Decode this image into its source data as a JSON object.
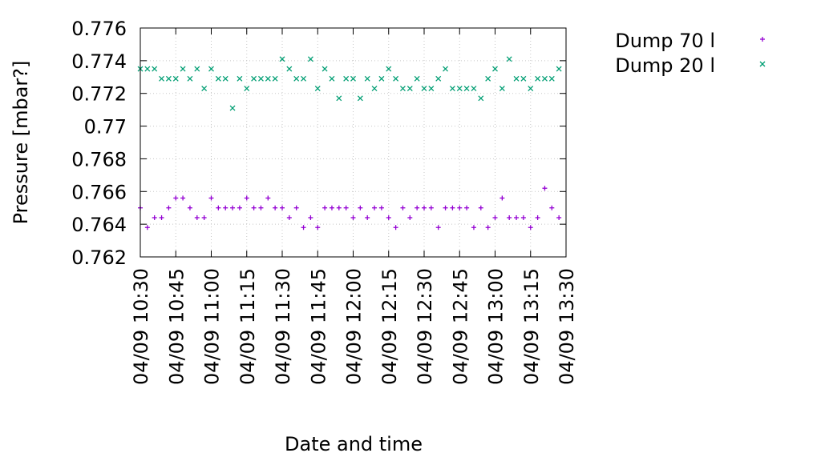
{
  "chart_data": {
    "type": "scatter",
    "xlabel": "Date and time",
    "ylabel": "Pressure [mbar?]",
    "ylim": [
      0.762,
      0.776
    ],
    "xlim": [
      "04/09 10:30",
      "04/09 13:30"
    ],
    "y_ticks": [
      "0.762",
      "0.764",
      "0.766",
      "0.768",
      "0.77",
      "0.772",
      "0.774",
      "0.776"
    ],
    "x_ticks": [
      "04/09 10:30",
      "04/09 10:45",
      "04/09 11:00",
      "04/09 11:15",
      "04/09 11:30",
      "04/09 11:45",
      "04/09 12:00",
      "04/09 12:15",
      "04/09 12:30",
      "04/09 12:45",
      "04/09 13:00",
      "04/09 13:15",
      "04/09 13:30"
    ],
    "grid": true,
    "legend_position": "outside-right-top",
    "x_step_minutes": 3,
    "x_start": "04/09 10:30",
    "series": [
      {
        "name": "Dump 70 l",
        "marker": "plus",
        "color": "#9400d3",
        "values": [
          0.765,
          0.7638,
          0.7644,
          0.7644,
          0.765,
          0.7656,
          0.7656,
          0.765,
          0.7644,
          0.7644,
          0.7656,
          0.765,
          0.765,
          0.765,
          0.765,
          0.7656,
          0.765,
          0.765,
          0.7656,
          0.765,
          0.765,
          0.7644,
          0.765,
          0.7638,
          0.7644,
          0.7638,
          0.765,
          0.765,
          0.765,
          0.765,
          0.7644,
          0.765,
          0.7644,
          0.765,
          0.765,
          0.7644,
          0.7638,
          0.765,
          0.7644,
          0.765,
          0.765,
          0.765,
          0.7638,
          0.765,
          0.765,
          0.765,
          0.765,
          0.7638,
          0.765,
          0.7638,
          0.7644,
          0.7656,
          0.7644,
          0.7644,
          0.7644,
          0.7638,
          0.7644,
          0.7662,
          0.765,
          0.7644
        ]
      },
      {
        "name": "Dump 20 l",
        "marker": "cross",
        "color": "#009e73",
        "values": [
          0.7735,
          0.7735,
          0.7735,
          0.7729,
          0.7729,
          0.7729,
          0.7735,
          0.7729,
          0.7735,
          0.7723,
          0.7735,
          0.7729,
          0.7729,
          0.7711,
          0.7729,
          0.7723,
          0.7729,
          0.7729,
          0.7729,
          0.7729,
          0.7741,
          0.7735,
          0.7729,
          0.7729,
          0.7741,
          0.7723,
          0.7735,
          0.7729,
          0.7717,
          0.7729,
          0.7729,
          0.7717,
          0.7729,
          0.7723,
          0.7729,
          0.7735,
          0.7729,
          0.7723,
          0.7723,
          0.7729,
          0.7723,
          0.7723,
          0.7729,
          0.7735,
          0.7723,
          0.7723,
          0.7723,
          0.7723,
          0.7717,
          0.7729,
          0.7735,
          0.7723,
          0.7741,
          0.7729,
          0.7729,
          0.7723,
          0.7729,
          0.7729,
          0.7729,
          0.7735
        ]
      }
    ]
  }
}
